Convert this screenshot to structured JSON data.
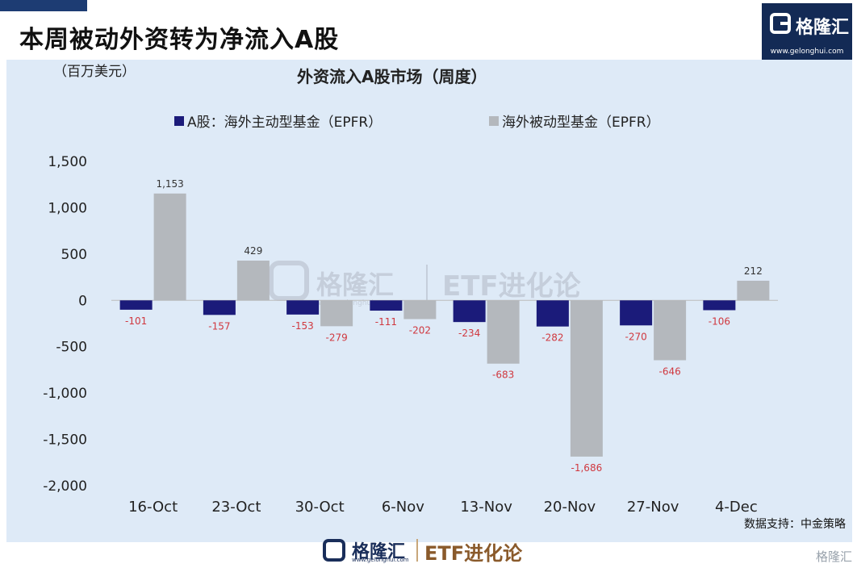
{
  "header": {
    "title": "本周被动外资转为净流入A股"
  },
  "logo": {
    "name": "格隆汇",
    "url": "www.gelonghui.com"
  },
  "chart": {
    "unit": "（百万美元）",
    "title": "外资流入A股市场（周度）",
    "source": "数据支持：中金策略"
  },
  "legend": [
    {
      "label": "A股：海外主动型基金（EPFR）",
      "color": "#1b1b7a"
    },
    {
      "label": "海外被动型基金（EPFR）",
      "color": "#b4b8bd"
    }
  ],
  "watermark": {
    "brand": "格隆汇",
    "url": "www.gelonghui.com",
    "series": "ETF进化论"
  },
  "footer": {
    "brand": "格隆汇",
    "url": "www.gelonghui.com",
    "series": "ETF进化论"
  },
  "corner_mark": "格隆汇",
  "chart_data": {
    "type": "bar",
    "title": "外资流入A股市场（周度）",
    "ylabel": "（百万美元）",
    "xlabel": "",
    "categories": [
      "16-Oct",
      "23-Oct",
      "30-Oct",
      "6-Nov",
      "13-Nov",
      "20-Nov",
      "27-Nov",
      "4-Dec"
    ],
    "series": [
      {
        "name": "A股：海外主动型基金（EPFR）",
        "color": "#1b1b7a",
        "values": [
          -101,
          -157,
          -153,
          -111,
          -234,
          -282,
          -270,
          -106
        ],
        "labels": [
          "-101",
          "-157",
          "-153",
          "-111",
          "-234",
          "-282",
          "-270",
          "-106"
        ]
      },
      {
        "name": "海外被动型基金（EPFR）",
        "color": "#b4b8bd",
        "values": [
          1153,
          429,
          -279,
          -202,
          -683,
          -1686,
          -646,
          212
        ],
        "labels": [
          "1,153",
          "429",
          "-279",
          "-202",
          "-683",
          "-1,686",
          "-646",
          "212"
        ]
      }
    ],
    "yticks": [
      1500,
      1000,
      500,
      0,
      -500,
      -1000,
      -1500,
      -2000
    ],
    "ytick_labels": [
      "1,500",
      "1,000",
      "500",
      "0",
      "-500",
      "-1,000",
      "-1,500",
      "-2,000"
    ],
    "ylim": [
      -2000,
      1500
    ],
    "grid": false,
    "legend_position": "top-left",
    "negative_label_color": "#d0383f",
    "positive_label_color": "#333333"
  }
}
